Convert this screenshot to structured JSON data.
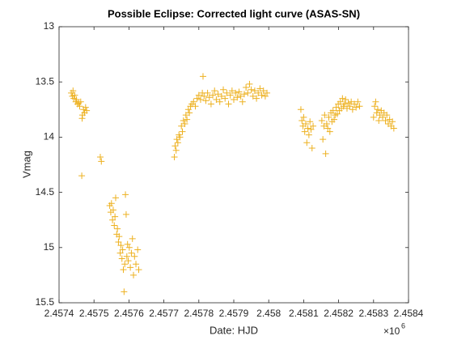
{
  "chart_data": {
    "type": "scatter",
    "title": "Possible Eclipse: Corrected light curve (ASAS-SN)",
    "x_label": "Date: HJD",
    "y_label": "Vmag",
    "x_scale_label": {
      "base": "×10",
      "exponent": "6"
    },
    "marker": "+",
    "color": "#EDB120",
    "grid": false,
    "y_reversed": true,
    "xlim": [
      2457400,
      2458400
    ],
    "xticks": [
      {
        "value": 2457400,
        "label": "2.4574"
      },
      {
        "value": 2457500,
        "label": "2.4575"
      },
      {
        "value": 2457600,
        "label": "2.4576"
      },
      {
        "value": 2457700,
        "label": "2.4577"
      },
      {
        "value": 2457800,
        "label": "2.4578"
      },
      {
        "value": 2457900,
        "label": "2.4579"
      },
      {
        "value": 2458000,
        "label": "2.458"
      },
      {
        "value": 2458100,
        "label": "2.4581"
      },
      {
        "value": 2458200,
        "label": "2.4582"
      },
      {
        "value": 2458300,
        "label": "2.4583"
      },
      {
        "value": 2458400,
        "label": "2.4584"
      }
    ],
    "ylim": [
      13,
      15.5
    ],
    "yticks": [
      13,
      13.5,
      14,
      14.5,
      15,
      15.5
    ],
    "x": [
      2457435,
      2457438,
      2457440,
      2457442,
      2457445,
      2457448,
      2457450,
      2457453,
      2457456,
      2457459,
      2457462,
      2457465,
      2457467,
      2457470,
      2457473,
      2457476,
      2457479,
      2457466,
      2457518,
      2457521,
      2457545,
      2457548,
      2457550,
      2457553,
      2457555,
      2457558,
      2457560,
      2457562,
      2457565,
      2457567,
      2457570,
      2457572,
      2457575,
      2457577,
      2457580,
      2457582,
      2457584,
      2457586,
      2457588,
      2457590,
      2457592,
      2457594,
      2457596,
      2457598,
      2457601,
      2457604,
      2457607,
      2457610,
      2457613,
      2457616,
      2457620,
      2457625,
      2457628,
      2457730,
      2457732,
      2457735,
      2457737,
      2457740,
      2457743,
      2457746,
      2457750,
      2457753,
      2457756,
      2457760,
      2457763,
      2457766,
      2457770,
      2457773,
      2457776,
      2457780,
      2457785,
      2457790,
      2457795,
      2457800,
      2457805,
      2457810,
      2457812,
      2457815,
      2457820,
      2457825,
      2457830,
      2457835,
      2457840,
      2457845,
      2457850,
      2457855,
      2457860,
      2457865,
      2457870,
      2457875,
      2457880,
      2457885,
      2457890,
      2457895,
      2457900,
      2457905,
      2457910,
      2457915,
      2457920,
      2457925,
      2457930,
      2457935,
      2457940,
      2457945,
      2457950,
      2457955,
      2457960,
      2457965,
      2457970,
      2457975,
      2457980,
      2457985,
      2457990,
      2457995,
      2458092,
      2458095,
      2458098,
      2458100,
      2458103,
      2458106,
      2458109,
      2458112,
      2458115,
      2458118,
      2458121,
      2458124,
      2458127,
      2458152,
      2458155,
      2458158,
      2458160,
      2458163,
      2458166,
      2458169,
      2458172,
      2458175,
      2458178,
      2458181,
      2458184,
      2458187,
      2458190,
      2458193,
      2458196,
      2458199,
      2458202,
      2458205,
      2458208,
      2458211,
      2458214,
      2458217,
      2458220,
      2458224,
      2458228,
      2458232,
      2458236,
      2458240,
      2458245,
      2458250,
      2458255,
      2458260,
      2458300,
      2458303,
      2458306,
      2458309,
      2458312,
      2458315,
      2458318,
      2458322,
      2458326,
      2458330,
      2458334,
      2458338,
      2458342,
      2458346,
      2458350,
      2458354,
      2458358
    ],
    "values": [
      13.6,
      13.63,
      13.58,
      13.65,
      13.62,
      13.68,
      13.66,
      13.7,
      13.69,
      13.72,
      13.68,
      14.35,
      13.8,
      13.75,
      13.78,
      13.73,
      13.76,
      13.83,
      14.18,
      14.22,
      14.62,
      14.68,
      14.6,
      14.75,
      14.66,
      14.8,
      14.72,
      14.55,
      14.88,
      14.83,
      14.95,
      14.9,
      15.05,
      14.98,
      15.1,
      15.02,
      15.2,
      15.4,
      15.15,
      14.52,
      14.7,
      15.08,
      14.97,
      15.12,
      15.0,
      15.18,
      15.05,
      14.92,
      15.25,
      15.08,
      15.15,
      15.02,
      15.2,
      14.18,
      14.08,
      14.12,
      14.02,
      14.05,
      13.98,
      14.0,
      13.9,
      13.95,
      13.85,
      13.88,
      13.8,
      13.84,
      13.75,
      13.78,
      13.72,
      13.7,
      13.68,
      13.72,
      13.65,
      13.62,
      13.66,
      13.6,
      13.45,
      13.63,
      13.67,
      13.6,
      13.64,
      13.7,
      13.62,
      13.58,
      13.66,
      13.61,
      13.68,
      13.63,
      13.57,
      13.65,
      13.6,
      13.7,
      13.62,
      13.58,
      13.66,
      13.6,
      13.64,
      13.59,
      13.63,
      13.68,
      13.61,
      13.55,
      13.6,
      13.52,
      13.57,
      13.63,
      13.58,
      13.65,
      13.6,
      13.56,
      13.62,
      13.58,
      13.63,
      13.6,
      13.75,
      13.85,
      13.9,
      13.82,
      13.95,
      13.88,
      14.05,
      13.92,
      13.98,
      13.86,
      13.93,
      14.1,
      13.9,
      13.85,
      14.02,
      13.9,
      13.8,
      14.15,
      13.88,
      13.92,
      13.82,
      13.95,
      13.78,
      13.86,
      13.76,
      13.84,
      13.8,
      13.73,
      13.79,
      13.7,
      13.76,
      13.68,
      13.74,
      13.65,
      13.72,
      13.7,
      13.66,
      13.74,
      13.69,
      13.72,
      13.68,
      13.75,
      13.7,
      13.73,
      13.68,
      13.72,
      13.82,
      13.72,
      13.68,
      13.78,
      13.75,
      13.85,
      13.8,
      13.76,
      13.82,
      13.78,
      13.85,
      13.8,
      13.88,
      13.84,
      13.9,
      13.86,
      13.92
    ]
  }
}
